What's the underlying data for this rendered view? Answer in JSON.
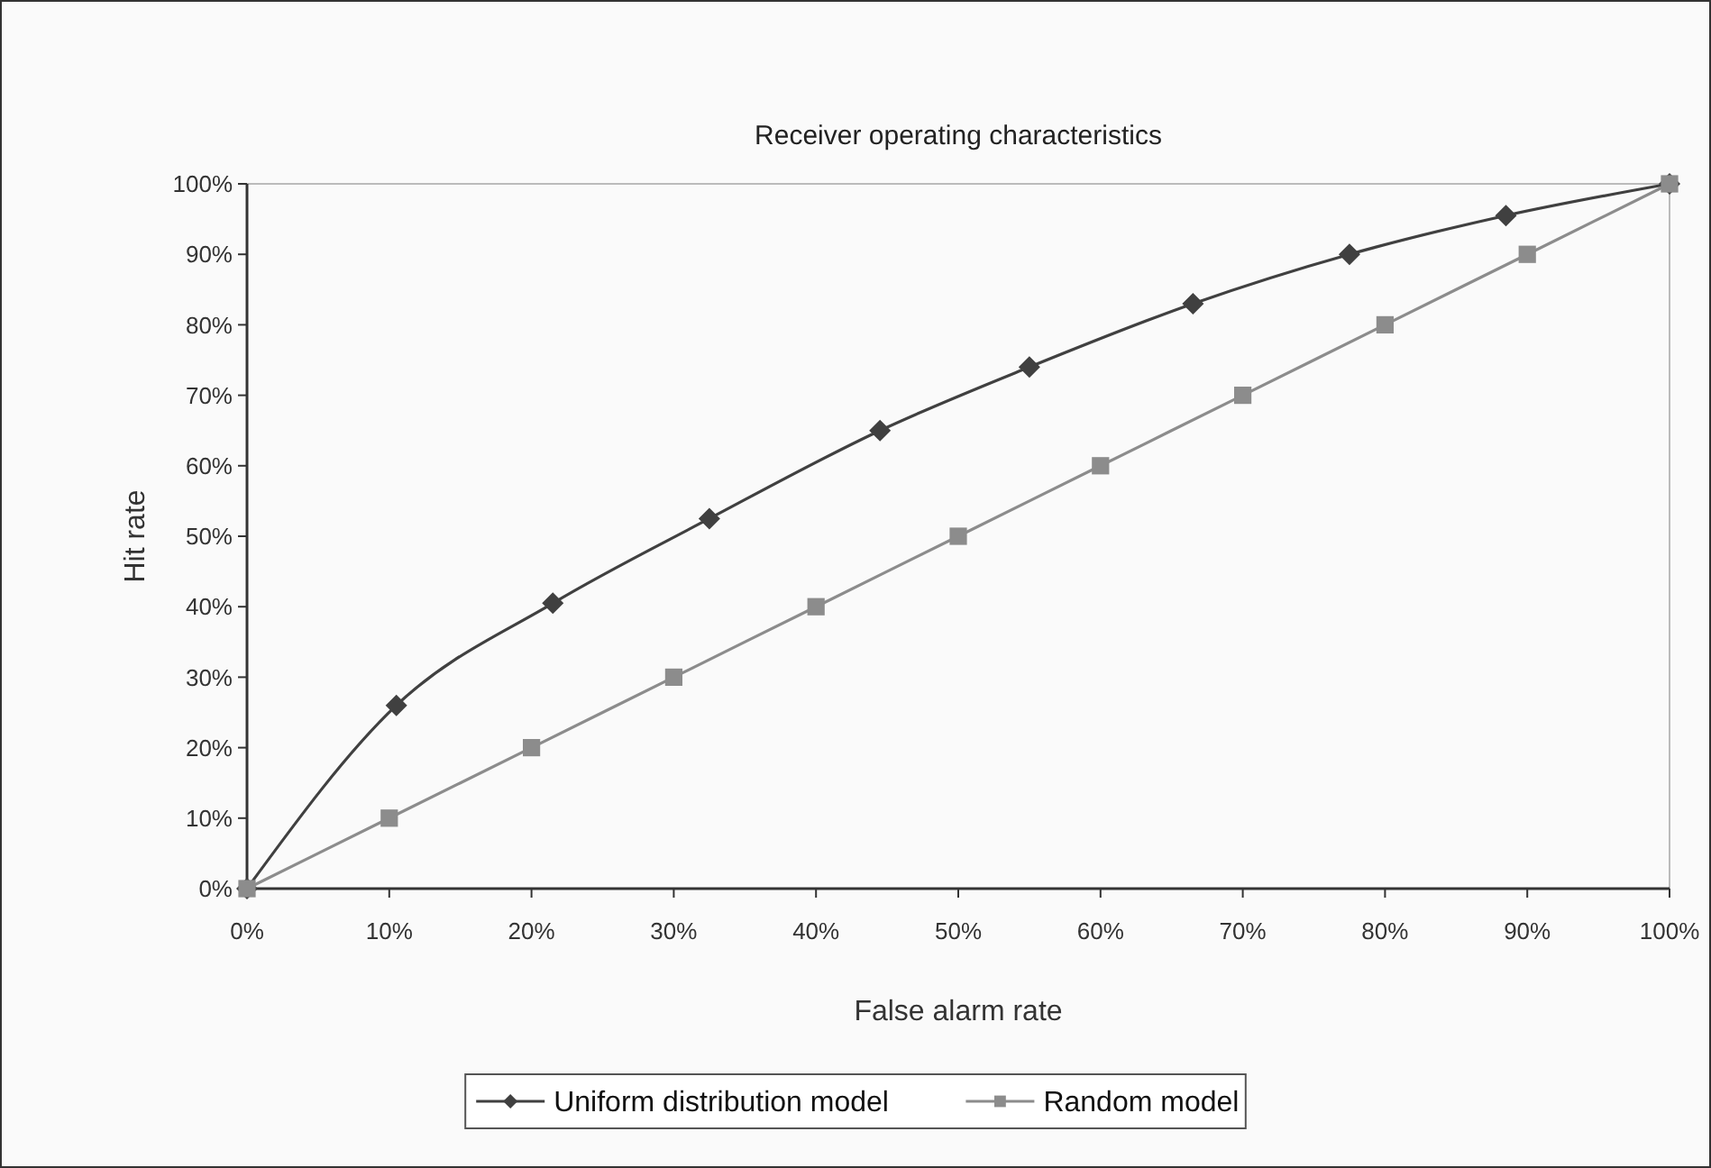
{
  "chart_data": {
    "type": "line",
    "title": "Receiver operating characteristics",
    "xlabel": "False alarm rate",
    "ylabel": "Hit rate",
    "xlim": [
      0,
      100
    ],
    "ylim": [
      0,
      100
    ],
    "xticks": [
      {
        "value": 0,
        "label": "0%"
      },
      {
        "value": 10,
        "label": "10%"
      },
      {
        "value": 20,
        "label": "20%"
      },
      {
        "value": 30,
        "label": "30%"
      },
      {
        "value": 40,
        "label": "40%"
      },
      {
        "value": 50,
        "label": "50%"
      },
      {
        "value": 60,
        "label": "60%"
      },
      {
        "value": 70,
        "label": "70%"
      },
      {
        "value": 80,
        "label": "80%"
      },
      {
        "value": 90,
        "label": "90%"
      },
      {
        "value": 100,
        "label": "100%"
      }
    ],
    "yticks": [
      {
        "value": 0,
        "label": "0%"
      },
      {
        "value": 10,
        "label": "10%"
      },
      {
        "value": 20,
        "label": "20%"
      },
      {
        "value": 30,
        "label": "30%"
      },
      {
        "value": 40,
        "label": "40%"
      },
      {
        "value": 50,
        "label": "50%"
      },
      {
        "value": 60,
        "label": "60%"
      },
      {
        "value": 70,
        "label": "70%"
      },
      {
        "value": 80,
        "label": "80%"
      },
      {
        "value": 90,
        "label": "90%"
      },
      {
        "value": 100,
        "label": "100%"
      }
    ],
    "grid": false,
    "legend": "bottom",
    "line_style": "solid",
    "series": [
      {
        "name": "Uniform distribution model",
        "color": "#404040",
        "marker": "diamond",
        "x": [
          0,
          10.5,
          21.5,
          32.5,
          44.5,
          55,
          66.5,
          77.5,
          88.5,
          100
        ],
        "values": [
          0,
          26,
          40.5,
          52.5,
          65,
          74,
          83,
          90,
          95.5,
          100
        ]
      },
      {
        "name": "Random model",
        "color": "#8c8c8c",
        "marker": "square",
        "x": [
          0,
          10,
          20,
          30,
          40,
          50,
          60,
          70,
          80,
          90,
          100
        ],
        "values": [
          0,
          10,
          20,
          30,
          40,
          50,
          60,
          70,
          80,
          90,
          100
        ]
      }
    ]
  }
}
